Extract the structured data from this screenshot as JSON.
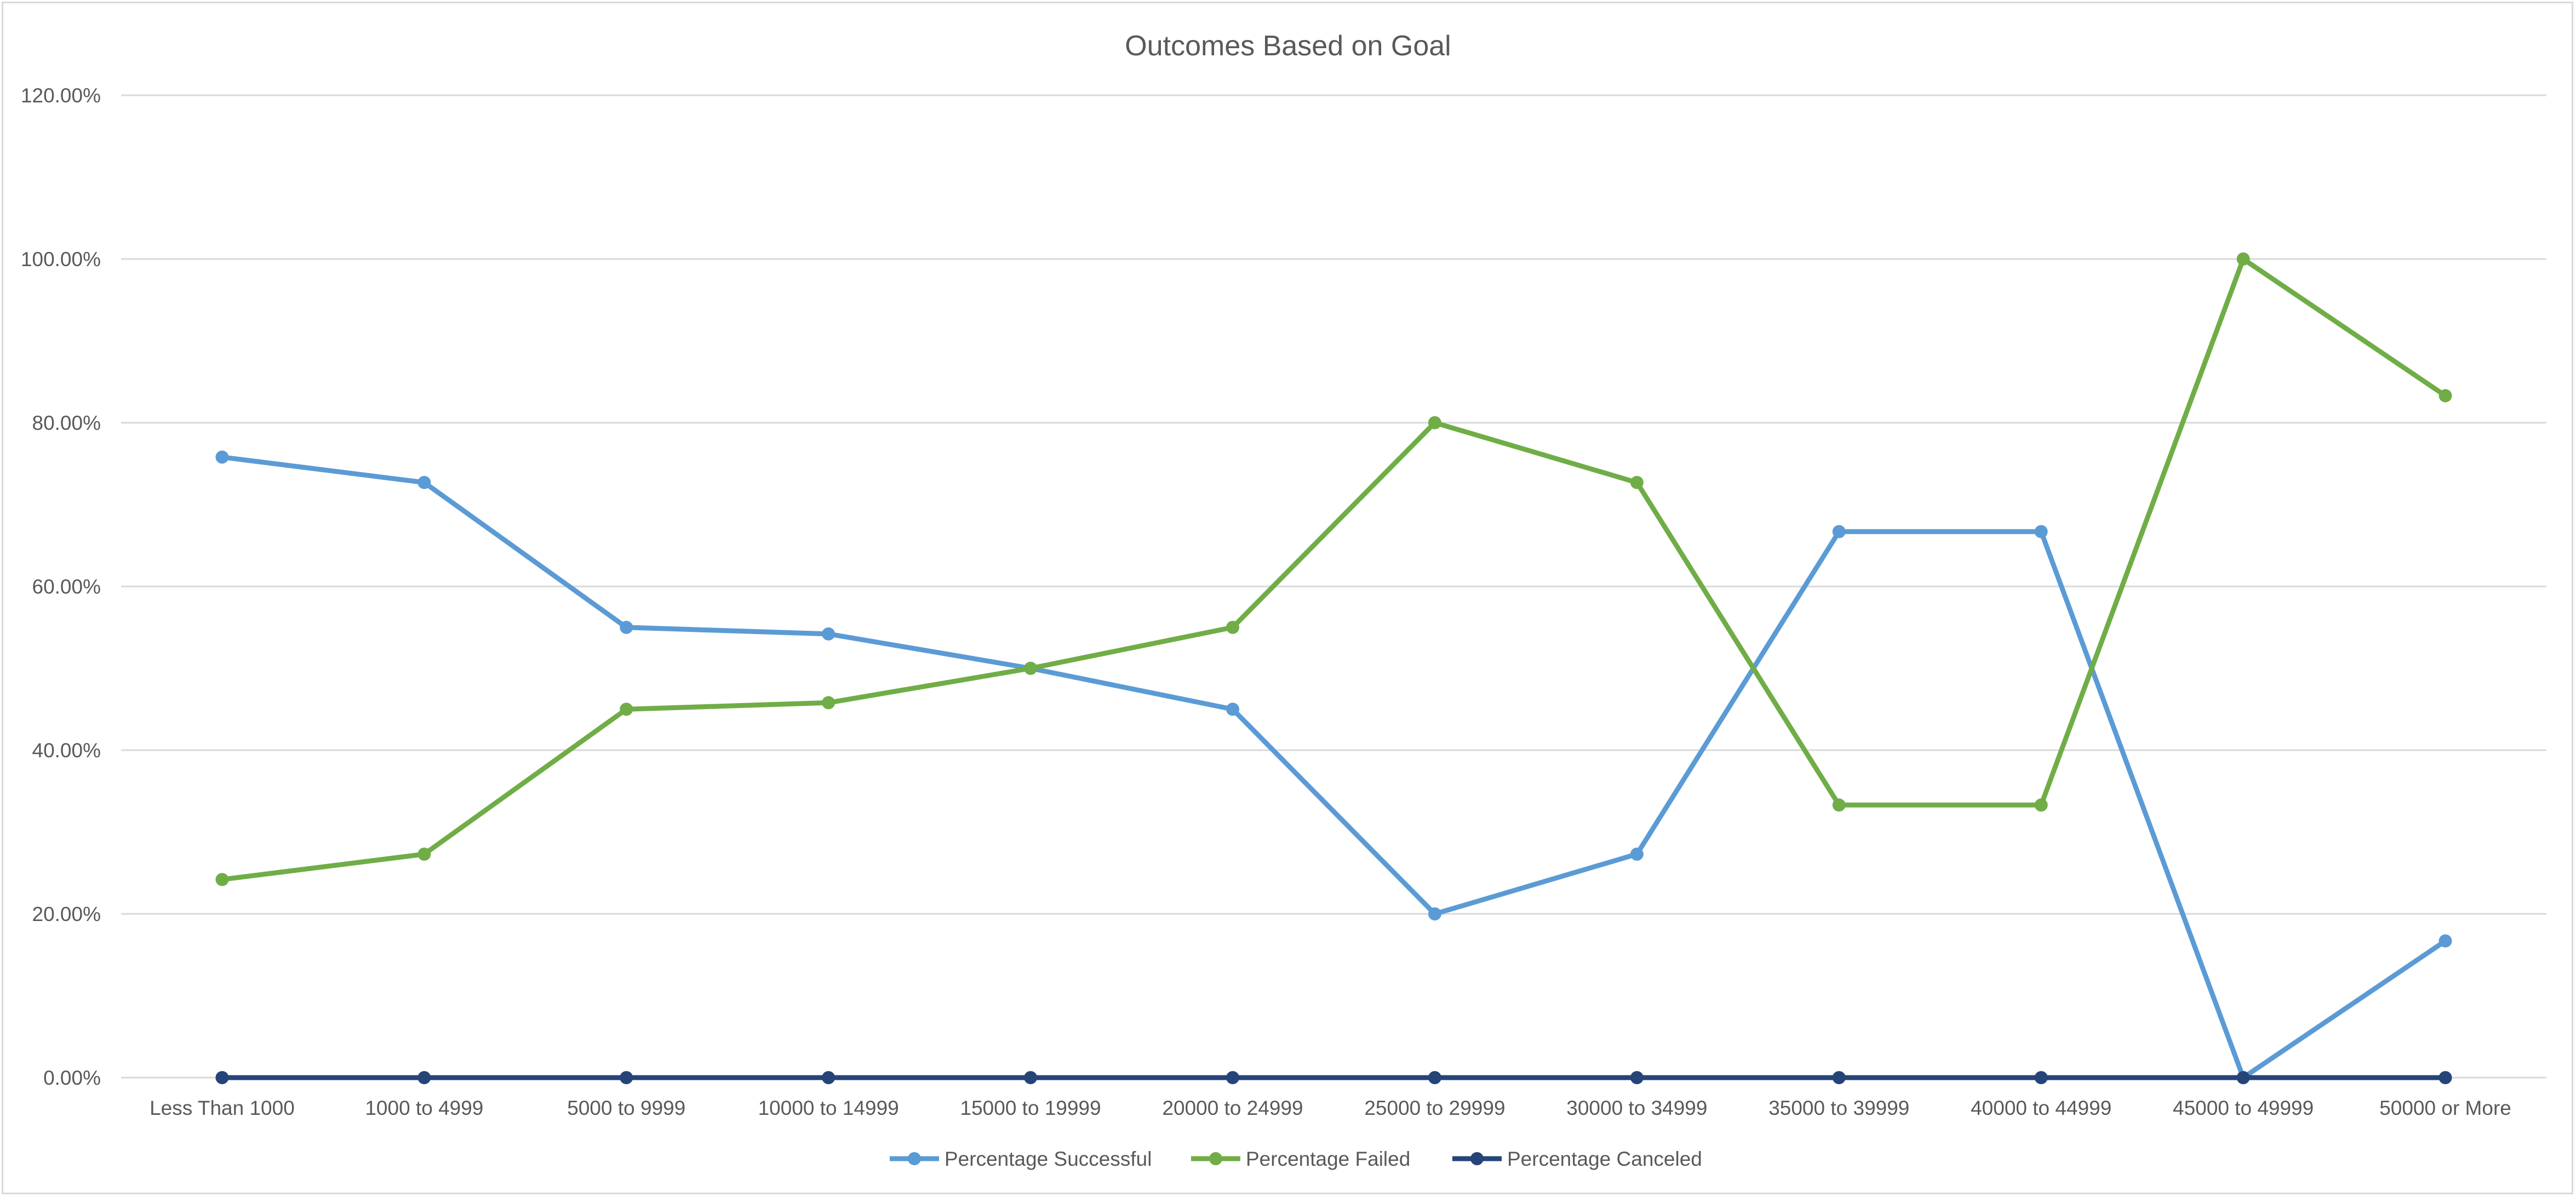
{
  "chart_data": {
    "type": "line",
    "title": "Outcomes Based on Goal",
    "xlabel": "",
    "ylabel": "",
    "ylim": [
      0,
      1.2
    ],
    "y_tick_labels": [
      "0.00%",
      "20.00%",
      "40.00%",
      "60.00%",
      "80.00%",
      "100.00%",
      "120.00%"
    ],
    "y_ticks": [
      0,
      0.2,
      0.4,
      0.6,
      0.8,
      1.0,
      1.2
    ],
    "grid": true,
    "legend_position": "bottom",
    "categories": [
      "Less Than 1000",
      "1000 to 4999",
      "5000 to 9999",
      "10000 to 14999",
      "15000 to 19999",
      "20000 to 24999",
      "25000 to 29999",
      "30000 to 34999",
      "35000 to 39999",
      "40000 to 44999",
      "45000 to 49999",
      "50000 or More"
    ],
    "series": [
      {
        "name": "Percentage Successful",
        "color": "#5b9bd5",
        "values": [
          0.758,
          0.727,
          0.55,
          0.542,
          0.5,
          0.45,
          0.2,
          0.273,
          0.667,
          0.667,
          0.0,
          0.167
        ]
      },
      {
        "name": "Percentage Failed",
        "color": "#70ad47",
        "values": [
          0.242,
          0.273,
          0.45,
          0.458,
          0.5,
          0.55,
          0.8,
          0.727,
          0.333,
          0.333,
          1.0,
          0.833
        ]
      },
      {
        "name": "Percentage Canceled",
        "color": "#264478",
        "values": [
          0,
          0,
          0,
          0,
          0,
          0,
          0,
          0,
          0,
          0,
          0,
          0
        ]
      }
    ]
  }
}
